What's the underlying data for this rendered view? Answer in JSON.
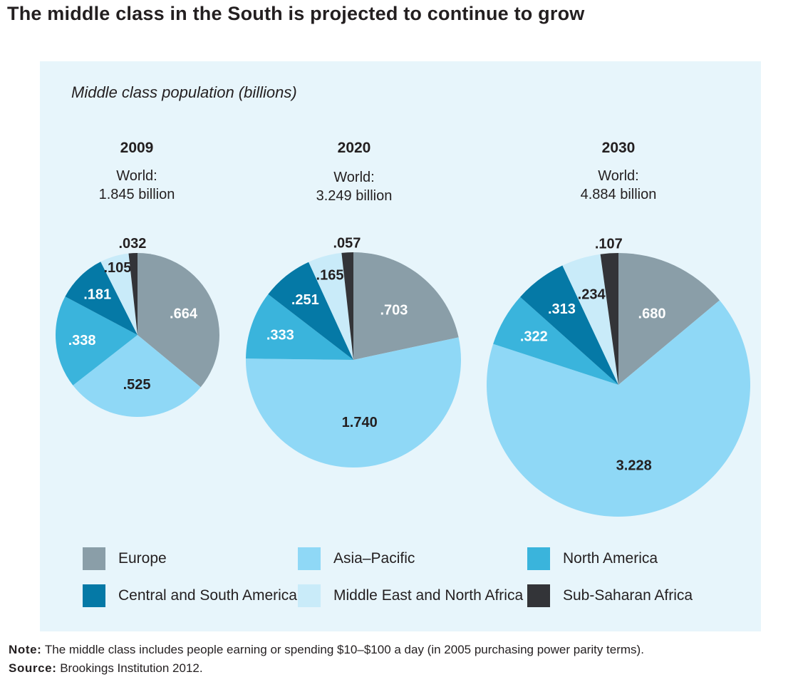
{
  "header": {
    "title": "The middle class in the South is projected to continue to grow"
  },
  "colors": {
    "Europe": "#8a9ea8",
    "Asia–Pacific": "#8fd8f6",
    "North America": "#3ab4dc",
    "Central and South America": "#0579a6",
    "Middle East and North Africa": "#c9ebf9",
    "Sub-Saharan Africa": "#333438",
    "panel_bg": "#e7f5fb"
  },
  "chart_data": {
    "type": "pie",
    "title": "Middle class population (billions)",
    "series_order": [
      "Europe",
      "Asia–Pacific",
      "North America",
      "Central and South America",
      "Middle East and North Africa",
      "Sub-Saharan Africa"
    ],
    "pies": [
      {
        "year": "2009",
        "world_line1": "World:",
        "world_line2": "1.845 billion",
        "values": [
          0.664,
          0.525,
          0.338,
          0.181,
          0.105,
          0.032
        ],
        "labels": [
          ".664",
          ".525",
          ".338",
          ".181",
          ".105",
          ".032"
        ]
      },
      {
        "year": "2020",
        "world_line1": "World:",
        "world_line2": "3.249 billion",
        "values": [
          0.703,
          1.74,
          0.333,
          0.251,
          0.165,
          0.057
        ],
        "labels": [
          ".703",
          "1.740",
          ".333",
          ".251",
          ".165",
          ".057"
        ]
      },
      {
        "year": "2030",
        "world_line1": "World:",
        "world_line2": "4.884 billion",
        "values": [
          0.68,
          3.228,
          0.322,
          0.313,
          0.234,
          0.107
        ],
        "labels": [
          ".680",
          "3.228",
          ".322",
          ".313",
          ".234",
          ".107"
        ]
      }
    ],
    "legend": [
      "Europe",
      "Asia–Pacific",
      "North America",
      "Central and South America",
      "Middle East and North Africa",
      "Sub-Saharan Africa"
    ]
  },
  "footer": {
    "note_label": "Note:",
    "note_text": " The middle class includes people earning or spending $10–$100 a day (in 2005 purchasing power parity terms).",
    "source_label": "Source:",
    "source_text": " Brookings Institution 2012."
  }
}
